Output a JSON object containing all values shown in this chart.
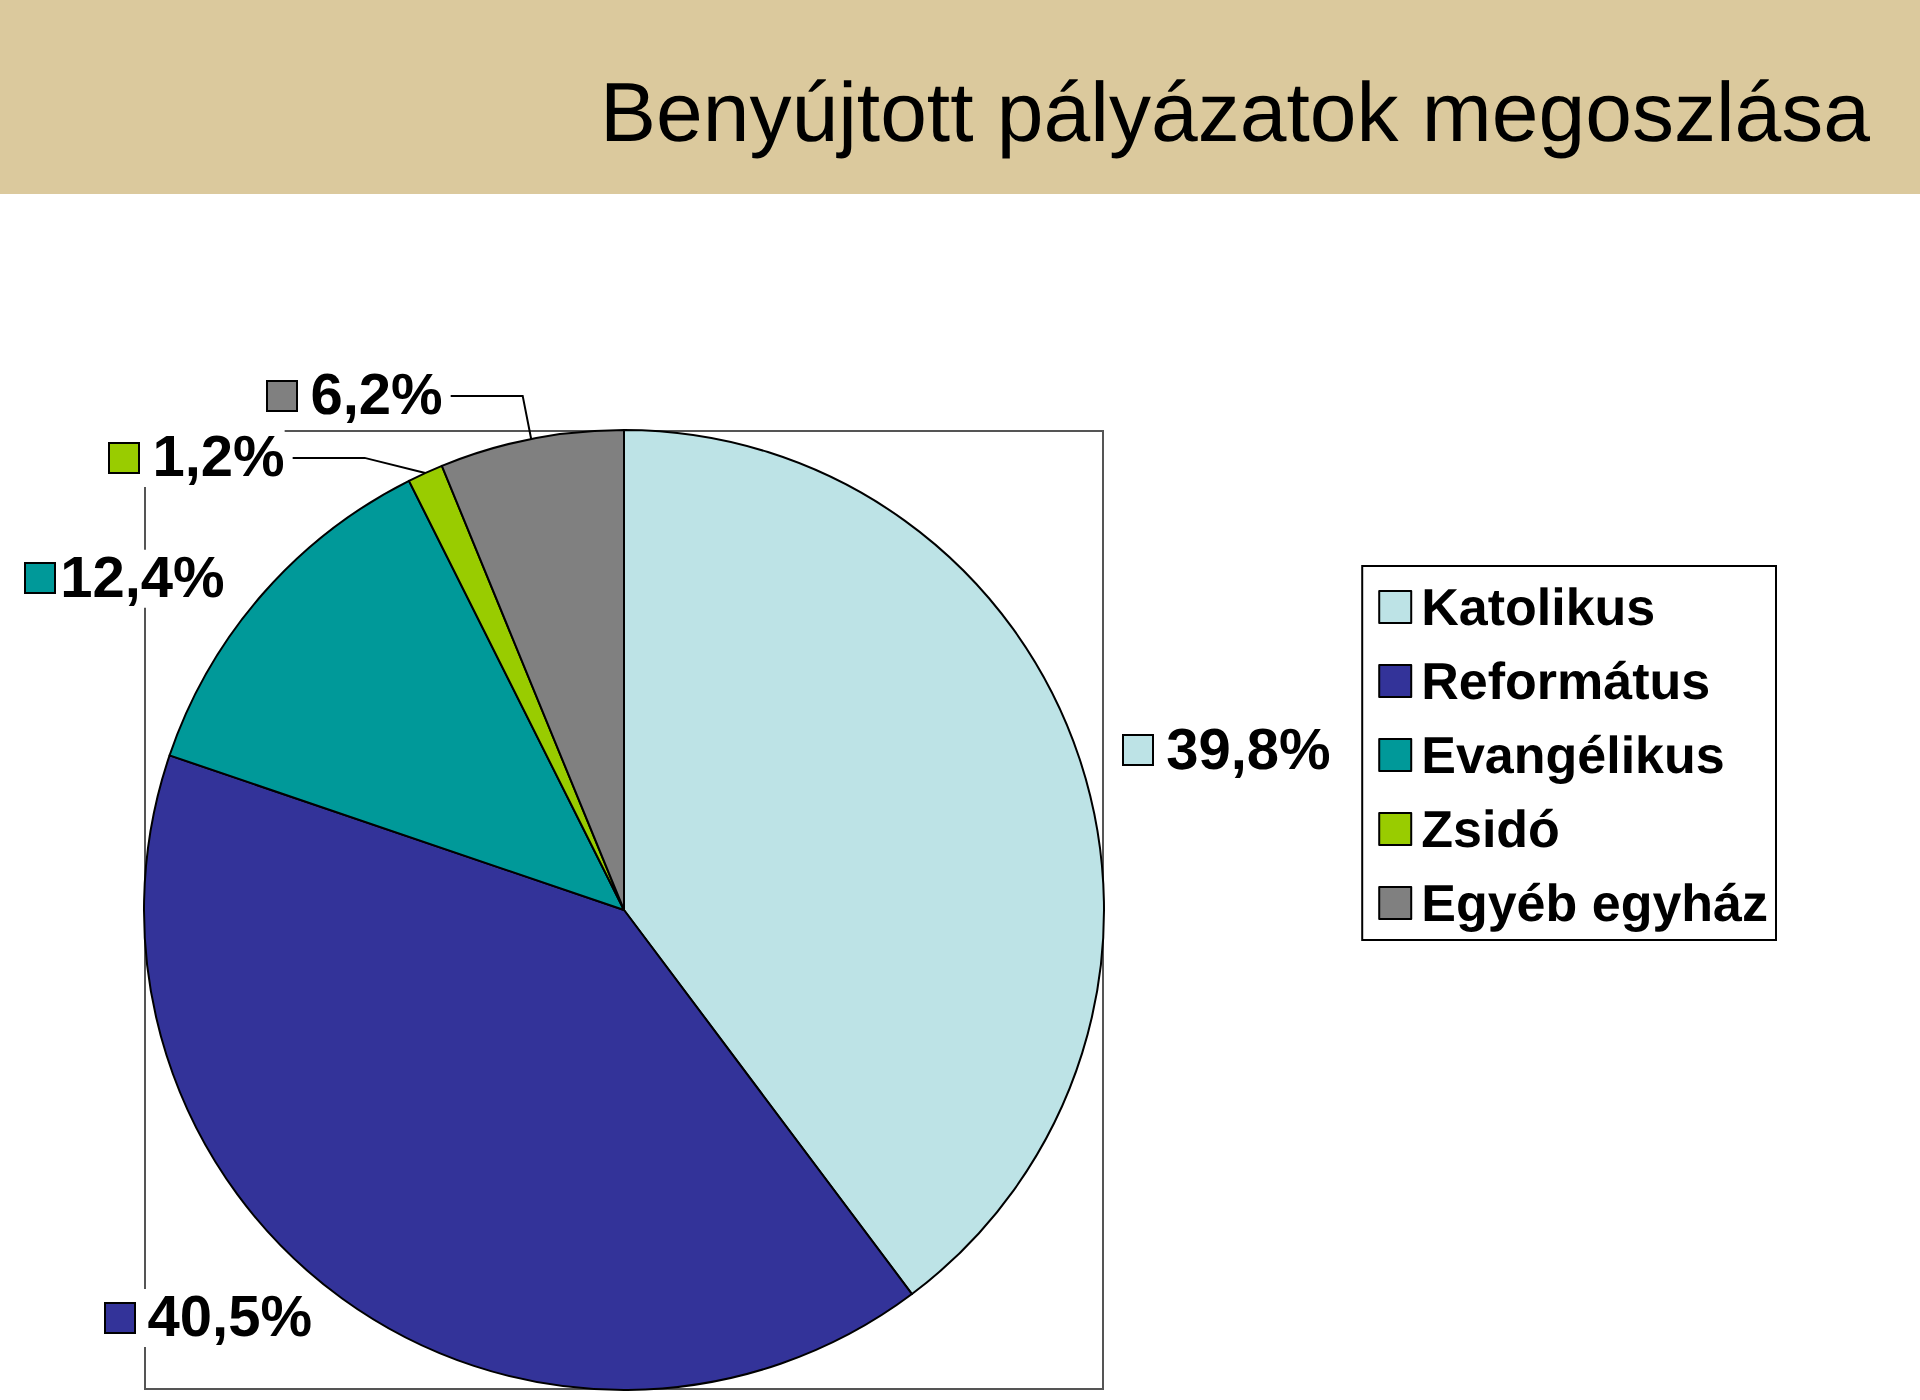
{
  "chart_data": {
    "type": "pie",
    "title": "Benyújtott pályázatok megoszlása",
    "categories": [
      "Katolikus",
      "Református",
      "Evangélikus",
      "Zsidó",
      "Egyéb egyház"
    ],
    "values": [
      39.8,
      40.5,
      12.4,
      1.2,
      6.2
    ],
    "colors": [
      "#bde3e6",
      "#333399",
      "#009999",
      "#99cc00",
      "#808080"
    ],
    "value_labels": [
      "39,8%",
      "40,5%",
      "12,4%",
      "1,2%",
      "6,2%"
    ],
    "legend": "right"
  }
}
